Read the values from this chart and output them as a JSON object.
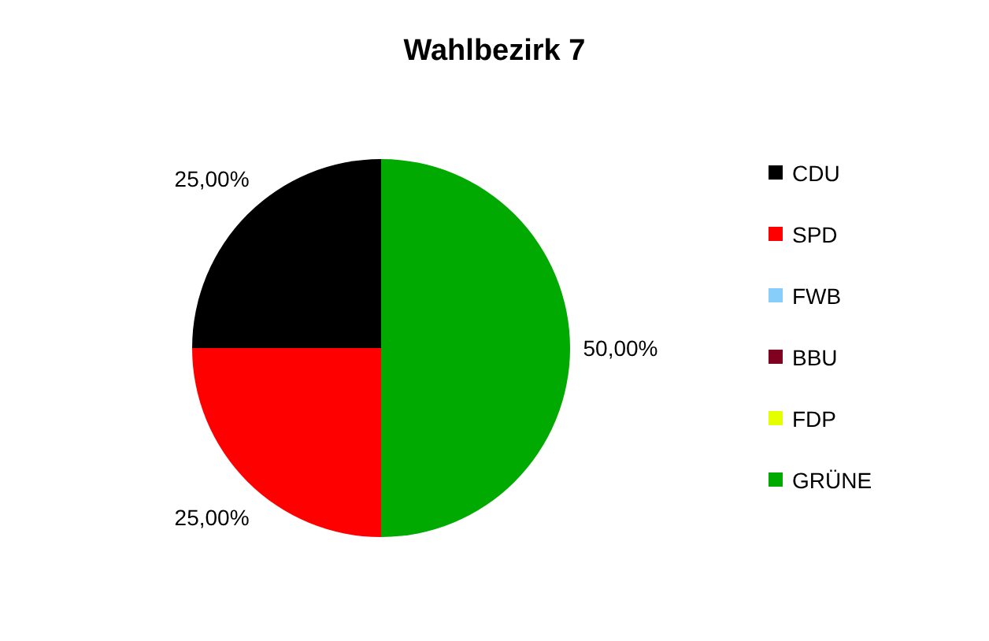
{
  "chart_data": {
    "type": "pie",
    "title": "Wahlbezirk 7",
    "categories": [
      "CDU",
      "SPD",
      "FWB",
      "BBU",
      "FDP",
      "GRÜNE"
    ],
    "values": [
      25,
      25,
      0,
      0,
      0,
      50
    ],
    "colors": [
      "#000000",
      "#ff0000",
      "#87cefa",
      "#800020",
      "#e6ff00",
      "#00aa00"
    ],
    "value_labels": [
      "25,00%",
      "25,00%",
      null,
      null,
      null,
      "50,00%"
    ],
    "legend": "right"
  }
}
